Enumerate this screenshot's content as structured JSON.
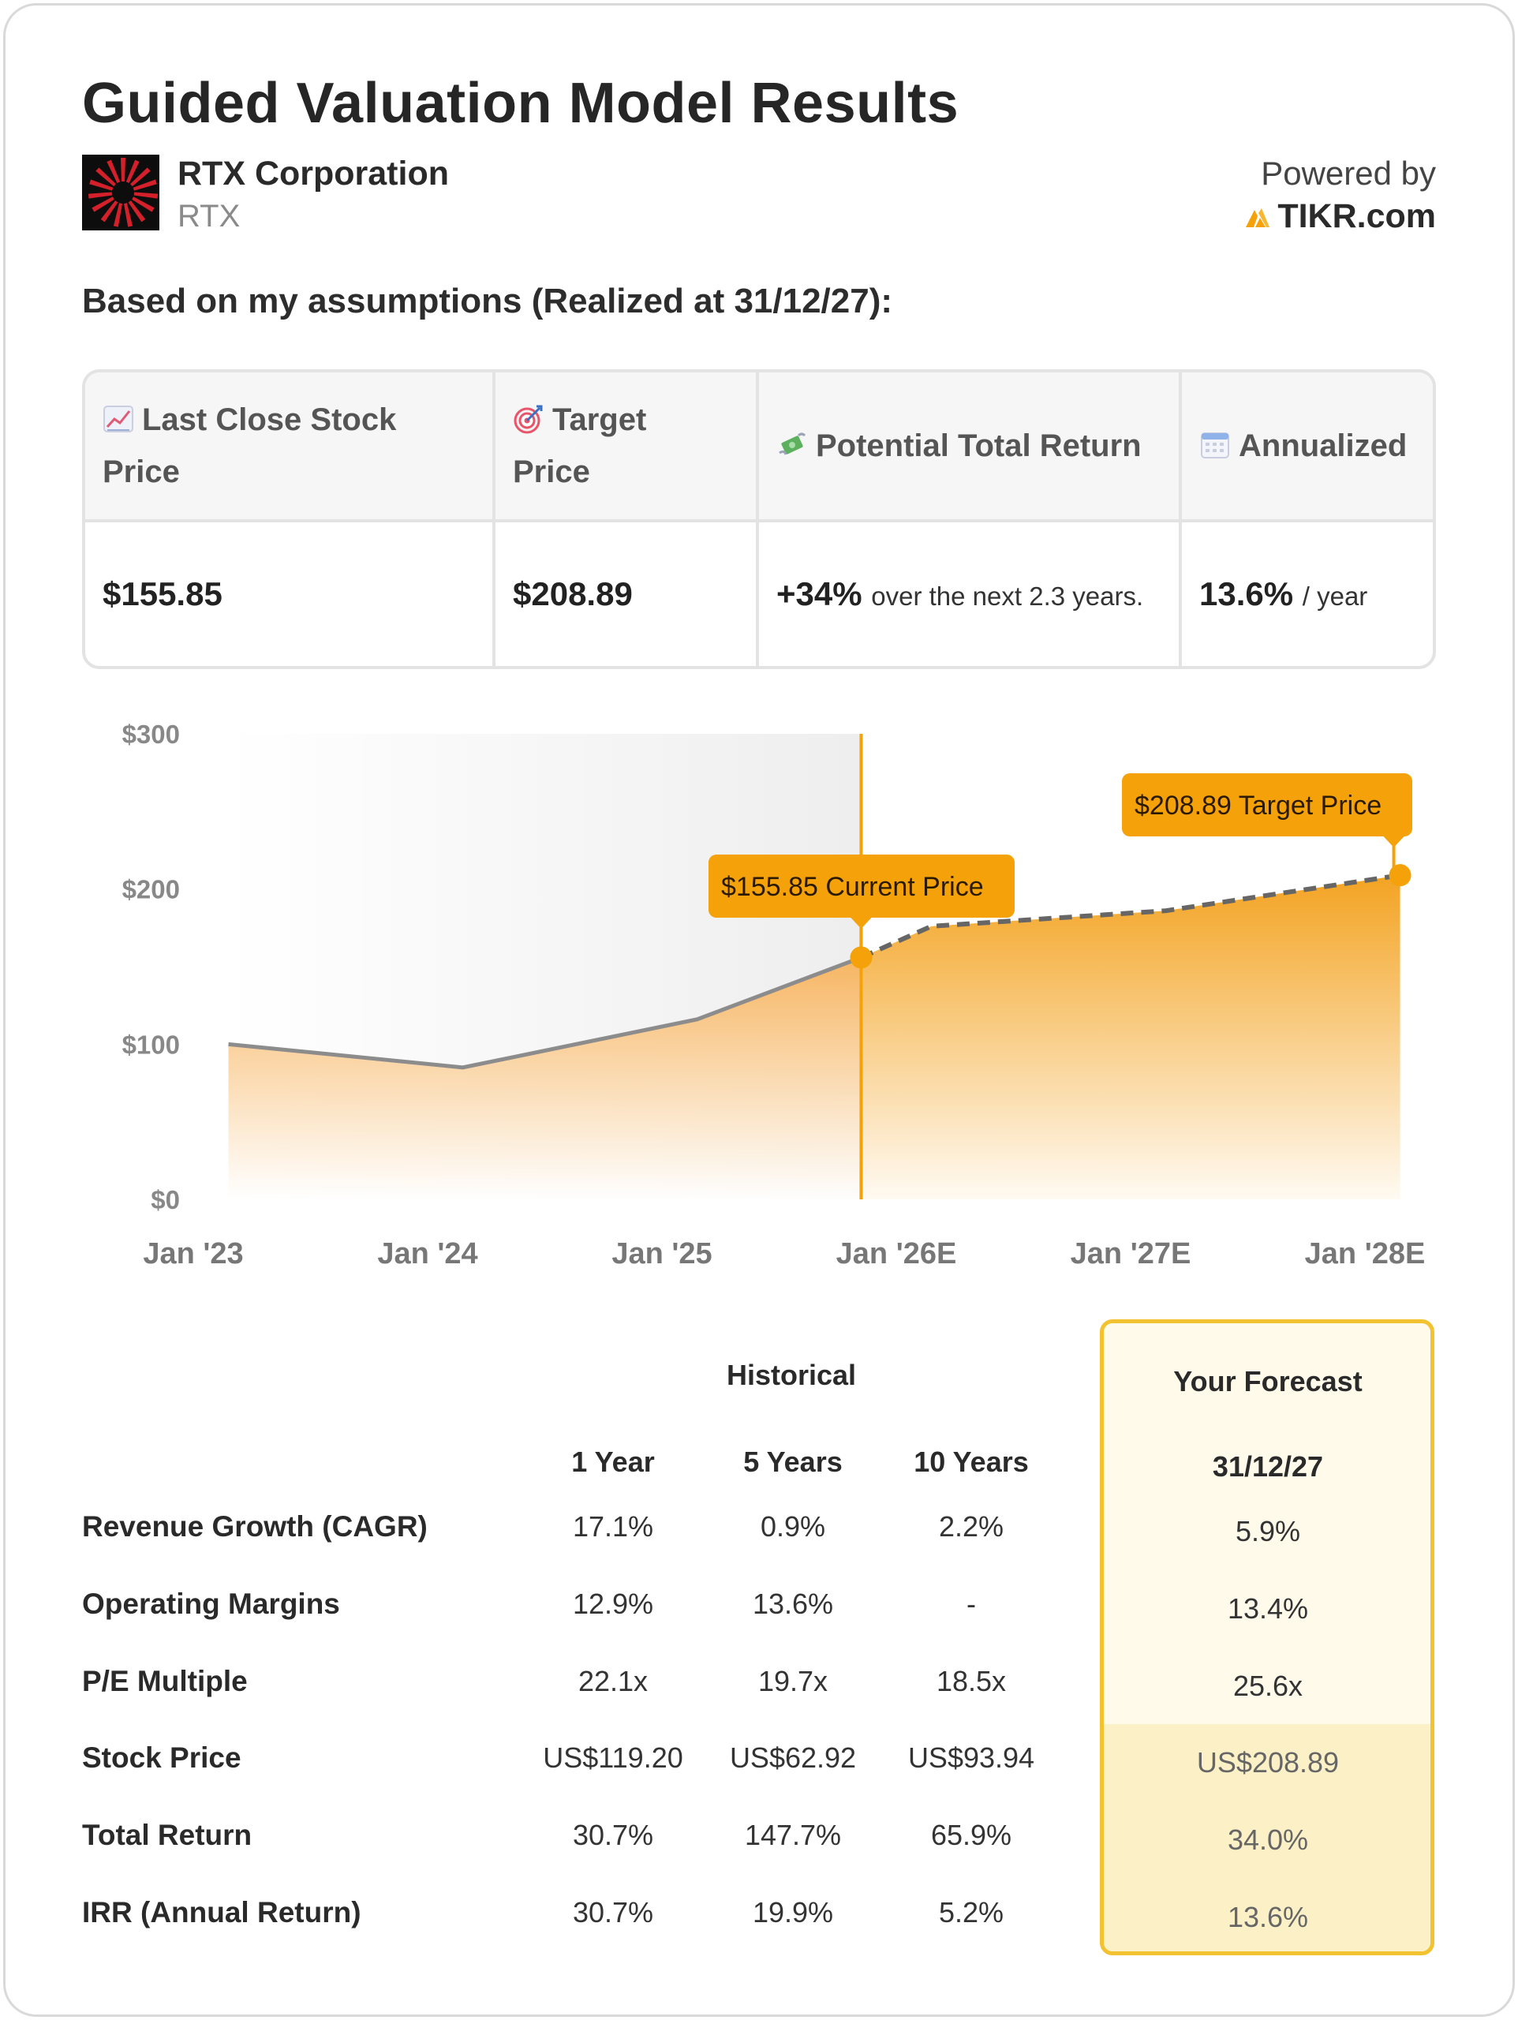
{
  "header": {
    "title": "Guided Valuation Model Results",
    "company_name": "RTX Corporation",
    "ticker": "RTX",
    "powered_by": "Powered by",
    "brand": "TIKR.com"
  },
  "assumptions_text": "Based on my assumptions (Realized at 31/12/27):",
  "summary": {
    "headers": {
      "last_close_line1": "Last Close Stock",
      "last_close_line2": "Price",
      "target_line1": "Target",
      "target_line2": "Price",
      "potential": "Potential Total Return",
      "annualized": "Annualized"
    },
    "values": {
      "last_close": "$155.85",
      "target": "$208.89",
      "potential_value": "+34%",
      "potential_suffix": "over the next 2.3 years.",
      "annualized_value": "13.6%",
      "annualized_suffix": "/ year"
    }
  },
  "chart_data": {
    "type": "area",
    "x": [
      "Jan '23",
      "Jan '24",
      "Jan '25",
      "Jan '26E",
      "Jan '27E",
      "Jan '28E"
    ],
    "y_ticks": [
      "$300",
      "$200",
      "$100",
      "$0"
    ],
    "ylim": [
      0,
      300
    ],
    "historical": [
      {
        "t": 0.15,
        "v": 100
      },
      {
        "t": 1.15,
        "v": 85
      },
      {
        "t": 2.15,
        "v": 116
      },
      {
        "t": 2.85,
        "v": 155.85
      }
    ],
    "forecast": [
      {
        "t": 2.85,
        "v": 155.85
      },
      {
        "t": 3.15,
        "v": 176
      },
      {
        "t": 4.15,
        "v": 186
      },
      {
        "t": 5.15,
        "v": 208.89
      }
    ],
    "current_marker": {
      "t": 2.85,
      "v": 155.85,
      "label": "$155.85 Current Price"
    },
    "target_marker": {
      "t": 5.15,
      "v": 208.89,
      "label": "$208.89 Target Price"
    },
    "accent": "#f5a20a"
  },
  "table": {
    "historical_label": "Historical",
    "forecast_label": "Your Forecast",
    "columns": [
      "1 Year",
      "5 Years",
      "10 Years"
    ],
    "forecast_date": "31/12/27",
    "rows": [
      {
        "label": "Revenue Growth (CAGR)",
        "values": [
          "17.1%",
          "0.9%",
          "2.2%"
        ],
        "forecast": "5.9%"
      },
      {
        "label": "Operating Margins",
        "values": [
          "12.9%",
          "13.6%",
          "-"
        ],
        "forecast": "13.4%"
      },
      {
        "label": "P/E Multiple",
        "values": [
          "22.1x",
          "19.7x",
          "18.5x"
        ],
        "forecast": "25.6x"
      },
      {
        "label": "Stock Price",
        "values": [
          "US$119.20",
          "US$62.92",
          "US$93.94"
        ],
        "forecast": "US$208.89"
      },
      {
        "label": "Total Return",
        "values": [
          "30.7%",
          "147.7%",
          "65.9%"
        ],
        "forecast": "34.0%"
      },
      {
        "label": "IRR (Annual Return)",
        "values": [
          "30.7%",
          "19.9%",
          "5.2%"
        ],
        "forecast": "13.6%"
      }
    ]
  }
}
